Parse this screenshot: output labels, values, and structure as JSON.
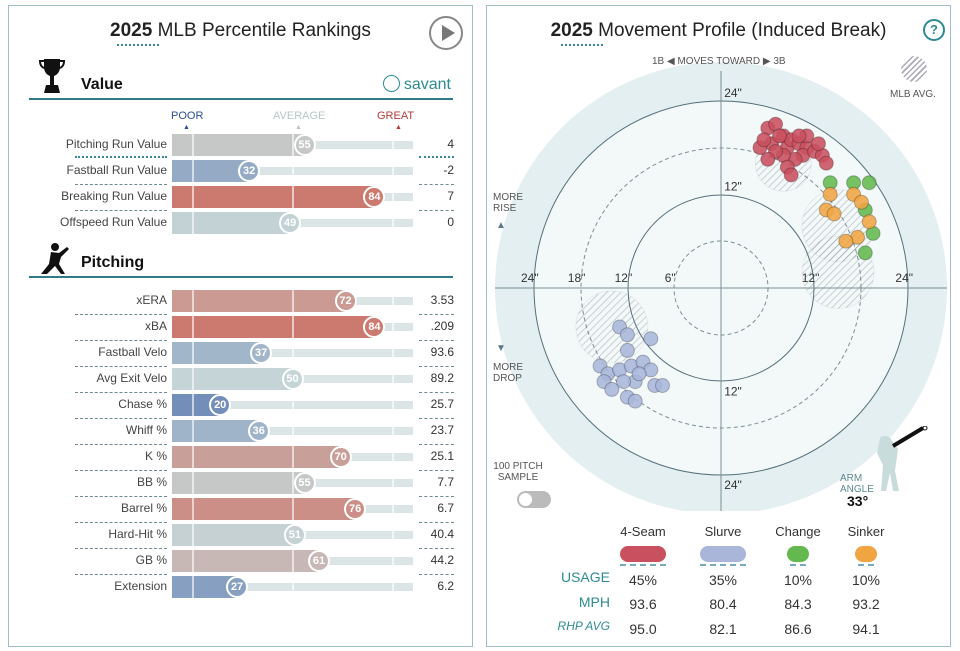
{
  "left": {
    "title_year": "2025",
    "title_rest": " MLB Percentile Rankings",
    "value_section": "Value",
    "savant": "savant",
    "pitching_section": "Pitching",
    "scale": {
      "poor": "POOR",
      "average": "AVERAGE",
      "great": "GREAT"
    },
    "value_rows": [
      {
        "label": "Pitching Run Value",
        "pct": 55,
        "value": "4"
      },
      {
        "label": "Fastball Run Value",
        "pct": 32,
        "value": "-2"
      },
      {
        "label": "Breaking Run Value",
        "pct": 84,
        "value": "7"
      },
      {
        "label": "Offspeed Run Value",
        "pct": 49,
        "value": "0"
      }
    ],
    "pitching_rows": [
      {
        "label": "xERA",
        "pct": 72,
        "value": "3.53"
      },
      {
        "label": "xBA",
        "pct": 84,
        "value": ".209"
      },
      {
        "label": "Fastball Velo",
        "pct": 37,
        "value": "93.6"
      },
      {
        "label": "Avg Exit Velo",
        "pct": 50,
        "value": "89.2"
      },
      {
        "label": "Chase %",
        "pct": 20,
        "value": "25.7"
      },
      {
        "label": "Whiff %",
        "pct": 36,
        "value": "23.7"
      },
      {
        "label": "K %",
        "pct": 70,
        "value": "25.1"
      },
      {
        "label": "BB %",
        "pct": 55,
        "value": "7.7"
      },
      {
        "label": "Barrel %",
        "pct": 76,
        "value": "6.7"
      },
      {
        "label": "Hard-Hit %",
        "pct": 51,
        "value": "40.4"
      },
      {
        "label": "GB %",
        "pct": 61,
        "value": "44.2"
      },
      {
        "label": "Extension",
        "pct": 27,
        "value": "6.2"
      }
    ]
  },
  "right": {
    "title_year": "2025",
    "title_rest": " Movement Profile (Induced Break)",
    "help": "?",
    "moves_toward": "1B ◀ MOVES TOWARD ▶ 3B",
    "mlb_avg": "MLB AVG.",
    "more_rise": "MORE RISE",
    "more_drop": "MORE DROP",
    "ring_labels": {
      "r6": "6\"",
      "r12": "12\"",
      "r18": "18\"",
      "r24": "24\""
    },
    "sample_toggle": "100 PITCH SAMPLE",
    "sample_on": false,
    "arm_angle_label": "ARM ANGLE",
    "arm_angle": "33°",
    "row_labels": {
      "usage": "USAGE",
      "mph": "MPH",
      "rhp": "RHP AVG"
    },
    "pitches": [
      {
        "name": "4-Seam",
        "color": "#c9505e",
        "usage": "45%",
        "mph": "93.6",
        "rhp_avg": "95.0"
      },
      {
        "name": "Slurve",
        "color": "#a9b6d9",
        "usage": "35%",
        "mph": "80.4",
        "rhp_avg": "82.1"
      },
      {
        "name": "Change",
        "color": "#63b84f",
        "usage": "10%",
        "mph": "84.3",
        "rhp_avg": "86.6"
      },
      {
        "name": "Sinker",
        "color": "#f0a542",
        "usage": "10%",
        "mph": "93.2",
        "rhp_avg": "94.1"
      }
    ]
  },
  "chart_data": {
    "type": "scatter",
    "xlabel": "1B ◀ MOVES TOWARD ▶ 3B",
    "xlim": [
      -24,
      24
    ],
    "ylim": [
      -24,
      24
    ],
    "series": [
      {
        "name": "4-Seam",
        "points": [
          [
            6,
            20.5
          ],
          [
            7,
            21
          ],
          [
            8,
            19.5
          ],
          [
            6.5,
            18.5
          ],
          [
            8.5,
            18
          ],
          [
            9,
            19
          ],
          [
            10,
            18.5
          ],
          [
            11,
            18
          ],
          [
            10.5,
            17
          ],
          [
            12,
            17.5
          ],
          [
            13,
            17
          ],
          [
            9.5,
            16.5
          ],
          [
            8,
            17
          ],
          [
            7,
            17.5
          ],
          [
            5,
            18
          ],
          [
            5.5,
            19
          ],
          [
            11,
            19.5
          ],
          [
            12.5,
            18.5
          ],
          [
            8.5,
            15.5
          ],
          [
            9,
            14.5
          ],
          [
            6,
            16.5
          ],
          [
            10,
            19.5
          ],
          [
            13.5,
            16
          ],
          [
            7.5,
            19.5
          ]
        ]
      },
      {
        "name": "Slurve",
        "points": [
          [
            -13,
            -5
          ],
          [
            -12,
            -6
          ],
          [
            -9,
            -6.5
          ],
          [
            -12,
            -8
          ],
          [
            -15.5,
            -10
          ],
          [
            -14.5,
            -11
          ],
          [
            -13,
            -10.5
          ],
          [
            -11.5,
            -10
          ],
          [
            -10,
            -9.5
          ],
          [
            -9,
            -10.5
          ],
          [
            -11,
            -12
          ],
          [
            -12.5,
            -12
          ],
          [
            -15,
            -12
          ],
          [
            -14,
            -13
          ],
          [
            -12,
            -14
          ],
          [
            -11,
            -14.5
          ],
          [
            -8.5,
            -12.5
          ],
          [
            -7.5,
            -12.5
          ],
          [
            -10.5,
            -11
          ]
        ]
      },
      {
        "name": "Change",
        "points": [
          [
            14,
            13.5
          ],
          [
            17,
            13.5
          ],
          [
            19,
            13.5
          ],
          [
            18.5,
            10
          ],
          [
            19.5,
            7
          ],
          [
            18.5,
            4.5
          ]
        ]
      },
      {
        "name": "Sinker",
        "points": [
          [
            14,
            12
          ],
          [
            17,
            12
          ],
          [
            13.5,
            10
          ],
          [
            18,
            11
          ],
          [
            19,
            8.5
          ],
          [
            17.5,
            6.5
          ],
          [
            16,
            6
          ],
          [
            14.5,
            9.5
          ]
        ]
      }
    ],
    "mlb_avg_zones": [
      {
        "pitch": "4-Seam",
        "x": 8,
        "y": 16
      },
      {
        "pitch": "Slurve",
        "x": -14,
        "y": -5
      },
      {
        "pitch": "Change",
        "x": 15,
        "y": 2
      },
      {
        "pitch": "Sinker",
        "x": 15,
        "y": 8
      }
    ]
  }
}
